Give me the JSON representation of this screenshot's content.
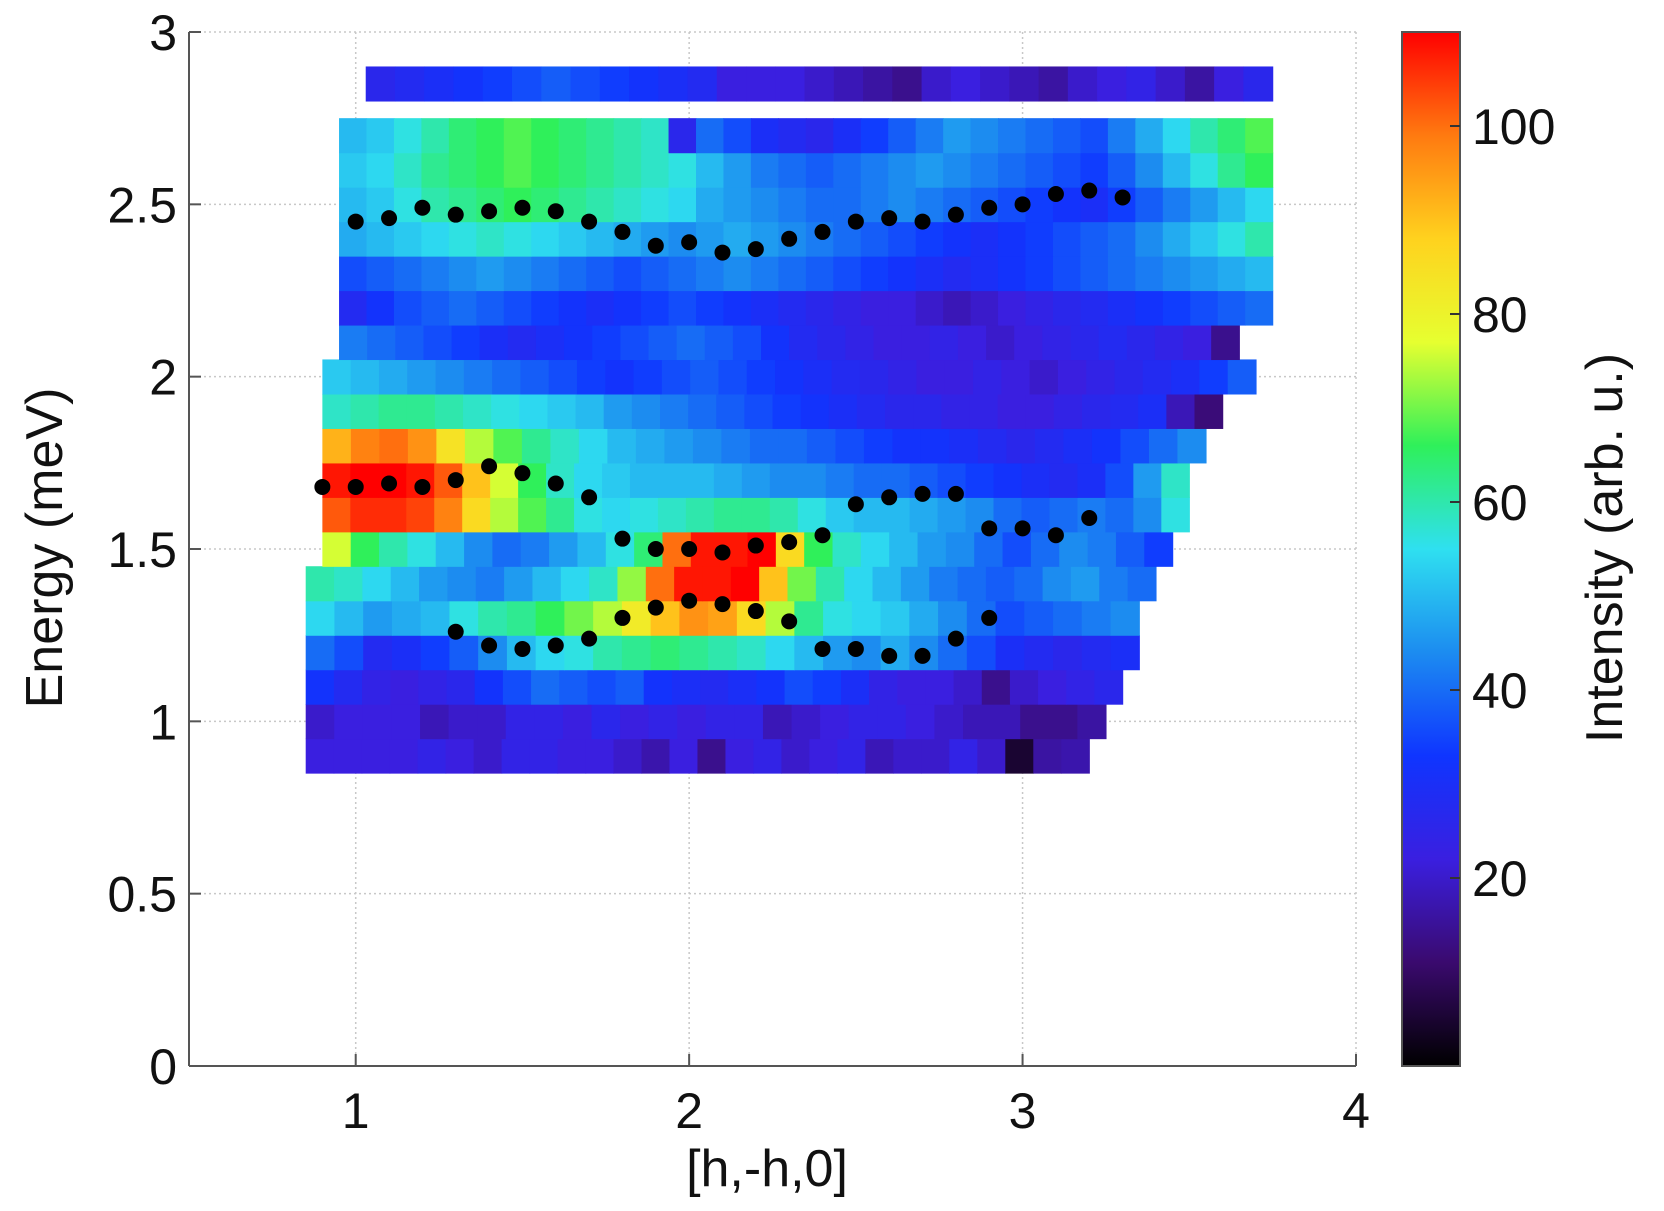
{
  "chart_data": {
    "type": "heatmap",
    "xlabel": "[h,-h,0]",
    "ylabel": "Energy (meV)",
    "xlim": [
      0.5,
      4
    ],
    "ylim": [
      0,
      3
    ],
    "xticks": [
      1,
      2,
      3,
      4
    ],
    "yticks": [
      0,
      0.5,
      1,
      1.5,
      2,
      2.5,
      3
    ],
    "ytick_labels": [
      "0",
      "0.5",
      "1",
      "1.5",
      "2",
      "2.5",
      "3"
    ],
    "grid": true,
    "colorbar": {
      "label": "Intensity (arb. u.)",
      "range": [
        0,
        110
      ],
      "ticks": [
        20,
        40,
        60,
        80,
        100
      ],
      "colormap": [
        "#000000",
        "#3a0a6e",
        "#3a1fe0",
        "#0f35ff",
        "#1c8cf0",
        "#2fe0f0",
        "#2ff05a",
        "#e6ff30",
        "#ffd21e",
        "#ff7a10",
        "#ff0000"
      ]
    },
    "heatmap_cells": {
      "e_step": 0.1,
      "dh": 0.075,
      "rows": [
        {
          "e": 0.9,
          "h_min": 0.85,
          "h_max": 3.2,
          "values": [
            22,
            22,
            22,
            22,
            24,
            22,
            20,
            24,
            24,
            22,
            22,
            20,
            17,
            22,
            14,
            22,
            24,
            20,
            22,
            24,
            18,
            20,
            20,
            24,
            20,
            5,
            16,
            17
          ]
        },
        {
          "e": 1.0,
          "h_min": 0.85,
          "h_max": 3.25,
          "values": [
            20,
            22,
            22,
            22,
            18,
            20,
            20,
            24,
            24,
            22,
            26,
            22,
            24,
            22,
            24,
            24,
            18,
            20,
            22,
            24,
            24,
            22,
            20,
            18,
            18,
            14,
            14,
            16
          ]
        },
        {
          "e": 1.1,
          "h_min": 0.85,
          "h_max": 3.3,
          "values": [
            32,
            28,
            24,
            22,
            24,
            26,
            32,
            36,
            40,
            38,
            36,
            38,
            32,
            30,
            28,
            30,
            32,
            36,
            34,
            30,
            24,
            22,
            22,
            20,
            14,
            20,
            22,
            24,
            26
          ]
        },
        {
          "e": 1.2,
          "h_min": 0.85,
          "h_max": 3.35,
          "values": [
            40,
            36,
            28,
            30,
            34,
            38,
            44,
            50,
            54,
            56,
            60,
            62,
            64,
            62,
            60,
            58,
            54,
            50,
            46,
            44,
            48,
            44,
            40,
            36,
            30,
            28,
            26,
            28,
            30
          ]
        },
        {
          "e": 1.3,
          "h_min": 0.85,
          "h_max": 3.35,
          "values": [
            54,
            50,
            46,
            48,
            50,
            56,
            60,
            62,
            66,
            70,
            74,
            82,
            90,
            96,
            94,
            86,
            74,
            62,
            56,
            54,
            52,
            48,
            44,
            40,
            36,
            38,
            40,
            42,
            44
          ]
        },
        {
          "e": 1.4,
          "h_min": 0.85,
          "h_max": 3.4,
          "values": [
            60,
            58,
            54,
            50,
            46,
            44,
            42,
            46,
            50,
            54,
            58,
            72,
            100,
            108,
            108,
            110,
            90,
            70,
            60,
            54,
            50,
            46,
            42,
            40,
            38,
            40,
            44,
            46,
            42,
            40
          ]
        },
        {
          "e": 1.5,
          "h_min": 0.9,
          "h_max": 3.45,
          "values": [
            76,
            66,
            60,
            56,
            50,
            44,
            40,
            42,
            46,
            50,
            56,
            64,
            100,
            108,
            108,
            110,
            86,
            66,
            58,
            54,
            50,
            46,
            44,
            40,
            36,
            40,
            44,
            42,
            38,
            34
          ]
        },
        {
          "e": 1.6,
          "h_min": 0.9,
          "h_max": 3.5,
          "values": [
            102,
            106,
            106,
            104,
            98,
            86,
            74,
            68,
            62,
            56,
            54,
            56,
            58,
            60,
            62,
            62,
            60,
            56,
            52,
            50,
            50,
            48,
            46,
            44,
            40,
            38,
            40,
            42,
            40,
            44,
            56
          ]
        },
        {
          "e": 1.7,
          "h_min": 0.9,
          "h_max": 3.5,
          "values": [
            108,
            110,
            110,
            108,
            102,
            90,
            76,
            66,
            58,
            54,
            52,
            50,
            50,
            50,
            48,
            46,
            44,
            44,
            42,
            40,
            40,
            38,
            36,
            34,
            32,
            30,
            28,
            30,
            36,
            46,
            58
          ]
        },
        {
          "e": 1.8,
          "h_min": 0.9,
          "h_max": 3.55,
          "values": [
            92,
            98,
            100,
            96,
            84,
            74,
            68,
            62,
            58,
            54,
            50,
            48,
            46,
            44,
            42,
            40,
            40,
            38,
            36,
            34,
            32,
            32,
            30,
            28,
            26,
            28,
            30,
            32,
            36,
            40,
            44
          ]
        },
        {
          "e": 1.9,
          "h_min": 0.9,
          "h_max": 3.6,
          "values": [
            58,
            60,
            62,
            62,
            60,
            58,
            56,
            54,
            52,
            50,
            46,
            44,
            42,
            40,
            38,
            36,
            34,
            32,
            30,
            28,
            26,
            26,
            24,
            24,
            22,
            22,
            24,
            26,
            28,
            30,
            18,
            12
          ]
        },
        {
          "e": 2.0,
          "h_min": 0.9,
          "h_max": 3.7,
          "values": [
            52,
            50,
            48,
            46,
            44,
            42,
            40,
            38,
            36,
            34,
            32,
            34,
            36,
            38,
            36,
            34,
            32,
            30,
            28,
            26,
            24,
            22,
            22,
            24,
            22,
            20,
            22,
            24,
            26,
            28,
            30,
            34,
            38
          ]
        },
        {
          "e": 2.1,
          "h_min": 0.95,
          "h_max": 3.65,
          "values": [
            42,
            40,
            38,
            36,
            34,
            30,
            28,
            30,
            32,
            34,
            36,
            38,
            40,
            38,
            36,
            32,
            28,
            26,
            24,
            22,
            22,
            24,
            22,
            20,
            22,
            24,
            26,
            28,
            26,
            24,
            22,
            14
          ]
        },
        {
          "e": 2.2,
          "h_min": 0.95,
          "h_max": 3.75,
          "values": [
            28,
            32,
            36,
            38,
            40,
            38,
            36,
            34,
            32,
            30,
            32,
            34,
            36,
            34,
            32,
            30,
            28,
            26,
            24,
            22,
            22,
            20,
            18,
            20,
            22,
            24,
            26,
            28,
            30,
            32,
            34,
            36,
            38,
            40
          ]
        },
        {
          "e": 2.3,
          "h_min": 0.95,
          "h_max": 3.75,
          "values": [
            36,
            38,
            40,
            42,
            44,
            46,
            44,
            42,
            40,
            38,
            36,
            38,
            40,
            42,
            44,
            42,
            40,
            38,
            36,
            34,
            32,
            30,
            28,
            30,
            32,
            34,
            36,
            38,
            40,
            42,
            44,
            46,
            48,
            50
          ]
        },
        {
          "e": 2.4,
          "h_min": 0.95,
          "h_max": 3.75,
          "values": [
            48,
            50,
            52,
            54,
            56,
            58,
            56,
            54,
            52,
            50,
            48,
            46,
            44,
            46,
            48,
            46,
            44,
            42,
            40,
            38,
            36,
            34,
            32,
            30,
            32,
            34,
            36,
            38,
            40,
            44,
            48,
            52,
            56,
            60
          ]
        },
        {
          "e": 2.5,
          "h_min": 0.95,
          "h_max": 3.75,
          "values": [
            50,
            52,
            56,
            60,
            62,
            64,
            66,
            64,
            62,
            60,
            58,
            56,
            54,
            48,
            46,
            44,
            42,
            40,
            40,
            42,
            44,
            42,
            40,
            38,
            36,
            34,
            32,
            30,
            34,
            38,
            42,
            46,
            50,
            54
          ]
        },
        {
          "e": 2.6,
          "h_min": 0.95,
          "h_max": 3.75,
          "values": [
            52,
            54,
            58,
            62,
            64,
            66,
            68,
            66,
            64,
            62,
            60,
            58,
            56,
            50,
            46,
            42,
            40,
            38,
            40,
            42,
            44,
            46,
            44,
            42,
            40,
            38,
            36,
            34,
            38,
            44,
            50,
            56,
            62,
            66
          ]
        },
        {
          "e": 2.7,
          "h_min": 0.95,
          "h_max": 3.75,
          "values": [
            50,
            52,
            56,
            60,
            64,
            66,
            68,
            66,
            64,
            62,
            60,
            58,
            26,
            40,
            36,
            30,
            28,
            26,
            30,
            34,
            38,
            42,
            46,
            44,
            42,
            40,
            38,
            36,
            42,
            48,
            54,
            60,
            64,
            68
          ]
        },
        {
          "e": 2.85,
          "h_min": 1.03,
          "h_max": 3.75,
          "values": [
            26,
            28,
            30,
            32,
            34,
            36,
            38,
            36,
            34,
            32,
            30,
            28,
            22,
            22,
            22,
            20,
            18,
            16,
            14,
            20,
            22,
            20,
            18,
            16,
            20,
            22,
            24,
            20,
            16,
            22,
            26
          ]
        }
      ]
    },
    "series": [
      {
        "points": [
          [
            1.0,
            2.45
          ],
          [
            1.1,
            2.46
          ],
          [
            1.2,
            2.49
          ],
          [
            1.3,
            2.47
          ],
          [
            1.4,
            2.48
          ],
          [
            1.5,
            2.49
          ],
          [
            1.6,
            2.48
          ],
          [
            1.7,
            2.45
          ],
          [
            1.8,
            2.42
          ],
          [
            1.9,
            2.38
          ],
          [
            2.0,
            2.39
          ],
          [
            2.1,
            2.36
          ],
          [
            2.2,
            2.37
          ],
          [
            2.3,
            2.4
          ],
          [
            2.4,
            2.42
          ],
          [
            2.5,
            2.45
          ],
          [
            2.6,
            2.46
          ],
          [
            2.7,
            2.45
          ],
          [
            2.8,
            2.47
          ],
          [
            2.9,
            2.49
          ],
          [
            3.0,
            2.5
          ],
          [
            3.1,
            2.53
          ],
          [
            3.2,
            2.54
          ],
          [
            3.3,
            2.52
          ]
        ]
      },
      {
        "points": [
          [
            0.9,
            1.68
          ],
          [
            1.0,
            1.68
          ],
          [
            1.1,
            1.69
          ],
          [
            1.2,
            1.68
          ],
          [
            1.3,
            1.7
          ],
          [
            1.4,
            1.74
          ],
          [
            1.5,
            1.72
          ],
          [
            1.6,
            1.69
          ],
          [
            1.7,
            1.65
          ],
          [
            1.8,
            1.53
          ],
          [
            1.9,
            1.5
          ],
          [
            2.0,
            1.5
          ],
          [
            2.1,
            1.49
          ],
          [
            2.2,
            1.51
          ],
          [
            2.3,
            1.52
          ],
          [
            2.4,
            1.54
          ],
          [
            2.5,
            1.63
          ],
          [
            2.6,
            1.65
          ],
          [
            2.7,
            1.66
          ],
          [
            2.8,
            1.66
          ],
          [
            2.9,
            1.56
          ],
          [
            3.0,
            1.56
          ],
          [
            3.1,
            1.54
          ],
          [
            3.2,
            1.59
          ]
        ]
      },
      {
        "points": [
          [
            1.3,
            1.26
          ],
          [
            1.4,
            1.22
          ],
          [
            1.5,
            1.21
          ],
          [
            1.6,
            1.22
          ],
          [
            1.7,
            1.24
          ],
          [
            1.8,
            1.3
          ],
          [
            1.9,
            1.33
          ],
          [
            2.0,
            1.35
          ],
          [
            2.1,
            1.34
          ],
          [
            2.2,
            1.32
          ],
          [
            2.3,
            1.29
          ],
          [
            2.4,
            1.21
          ],
          [
            2.5,
            1.21
          ],
          [
            2.6,
            1.19
          ],
          [
            2.7,
            1.19
          ],
          [
            2.8,
            1.24
          ],
          [
            2.9,
            1.3
          ]
        ]
      }
    ]
  }
}
